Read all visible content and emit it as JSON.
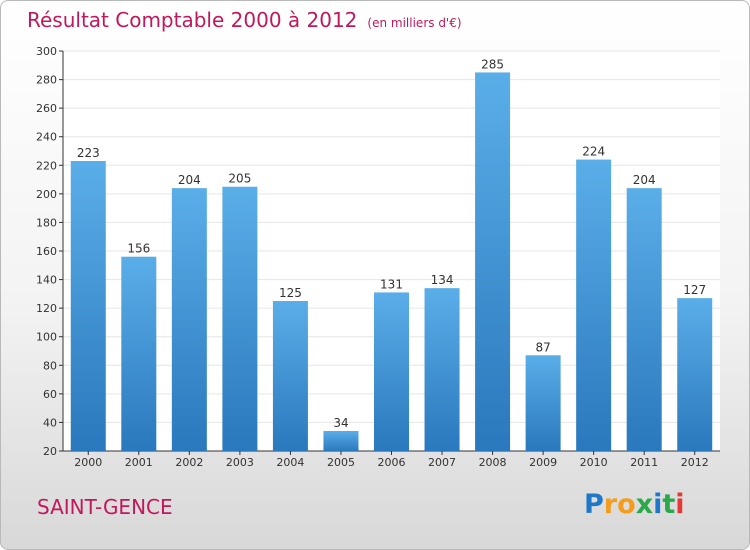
{
  "title": "Résultat Comptable 2000 à 2012",
  "unit": "(en milliers d'€)",
  "commune": "SAINT-GENCE",
  "logo": {
    "text": "Proxiti",
    "letters": [
      {
        "char": "P",
        "color": "#1f77c9"
      },
      {
        "char": "r",
        "color": "#f59d1b"
      },
      {
        "char": "o",
        "color": "#f59d1b"
      },
      {
        "char": "x",
        "color": "#2aa84a"
      },
      {
        "char": "i",
        "color": "#1f77c9"
      },
      {
        "char": "t",
        "color": "#2aa84a"
      },
      {
        "char": "i",
        "color": "#e53935"
      }
    ]
  },
  "colors": {
    "title": "#c2185b",
    "bar_top": "#5aaee8",
    "bar_bottom": "#2a78bd",
    "grid": "#e6e6e6",
    "axis": "#333333"
  },
  "chart_data": {
    "type": "bar",
    "title": "Résultat Comptable 2000 à 2012",
    "subtitle": "(en milliers d'€)",
    "categories": [
      "2000",
      "2001",
      "2002",
      "2003",
      "2004",
      "2005",
      "2006",
      "2007",
      "2008",
      "2009",
      "2010",
      "2011",
      "2012"
    ],
    "values": [
      223,
      156,
      204,
      205,
      125,
      34,
      131,
      134,
      285,
      87,
      224,
      204,
      127
    ],
    "ylim": [
      20,
      300
    ],
    "yticks": [
      20,
      40,
      60,
      80,
      100,
      120,
      140,
      160,
      180,
      200,
      220,
      240,
      260,
      280,
      300
    ],
    "grid": true,
    "data_labels": true
  }
}
